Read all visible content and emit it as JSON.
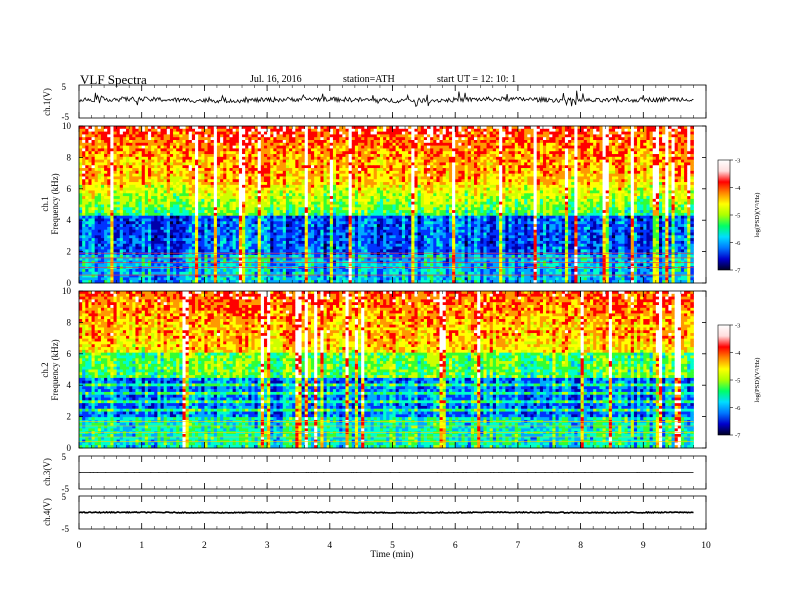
{
  "header": {
    "title": "VLF  Spectra",
    "date": "Jul.  16,  2016",
    "station": "station=ATH",
    "start": "start  UT  =    12: 10: 1"
  },
  "colors": {
    "colormap": [
      "#000033",
      "#0000aa",
      "#0033ff",
      "#00aaff",
      "#00ffcc",
      "#33ff33",
      "#ccff00",
      "#ffff00",
      "#ff9900",
      "#ff0000",
      "#ffffff"
    ]
  },
  "chart_data": [
    {
      "type": "line",
      "name": "ch1-waveform",
      "ylabel": "ch.1(V)",
      "ylim": [
        -5,
        5
      ],
      "yticks": [
        "5",
        "-5"
      ],
      "baseline_v": 0.5,
      "noise_v": 0.7
    },
    {
      "type": "heatmap",
      "name": "ch1-spectrogram",
      "ylabel_channel": "ch.1",
      "ylabel": "Frequency  (kHz)",
      "ylim": [
        0,
        10
      ],
      "yticks": [
        "0",
        "2",
        "4",
        "6",
        "8",
        "10"
      ],
      "xlim": [
        0,
        10
      ],
      "data_xmax_min": 9.8,
      "colorbar": {
        "label": "log(PSD)(V²/Hz)",
        "ticks": [
          "-3",
          "-4",
          "-5",
          "-6",
          "-7"
        ],
        "range": [
          -7,
          -3
        ]
      }
    },
    {
      "type": "heatmap",
      "name": "ch2-spectrogram",
      "ylabel_channel": "ch.2",
      "ylabel": "Frequency  (kHz)",
      "ylim": [
        0,
        10
      ],
      "yticks": [
        "0",
        "2",
        "4",
        "6",
        "8",
        "10"
      ],
      "xlim": [
        0,
        10
      ],
      "data_xmax_min": 9.8,
      "colorbar": {
        "label": "log(PSD)(V²/Hz)",
        "ticks": [
          "-3",
          "-4",
          "-5",
          "-6",
          "-7"
        ],
        "range": [
          -7,
          -3
        ]
      }
    },
    {
      "type": "line",
      "name": "ch3-waveform",
      "ylabel": "ch.3(V)",
      "ylim": [
        -5,
        5
      ],
      "yticks": [
        "5",
        "-5"
      ],
      "baseline_v": 0.0,
      "noise_v": 0.02
    },
    {
      "type": "line",
      "name": "ch4-waveform",
      "ylabel": "ch.4(V)",
      "ylim": [
        -5,
        5
      ],
      "yticks": [
        "5",
        "-5"
      ],
      "baseline_v": 0.0,
      "noise_v": 0.15
    }
  ],
  "xaxis": {
    "label": "Time  (min)",
    "ticks": [
      "0",
      "1",
      "2",
      "3",
      "4",
      "5",
      "6",
      "7",
      "8",
      "9",
      "10"
    ],
    "range": [
      0,
      10
    ]
  }
}
